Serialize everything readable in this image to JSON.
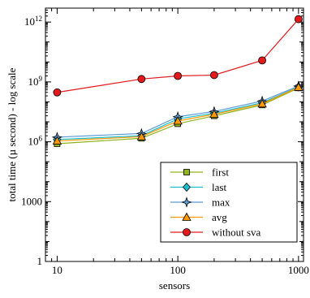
{
  "chart_data": {
    "type": "line",
    "title": "",
    "xlabel": "sensors",
    "ylabel": "total time (µ second) - log scale",
    "xscale": "log",
    "yscale": "log",
    "xlim": [
      8,
      1100
    ],
    "ylim": [
      1,
      5000000000000.0
    ],
    "xticks": [
      {
        "value": 10,
        "label": "10"
      },
      {
        "value": 100,
        "label": "100"
      },
      {
        "value": 1000,
        "label": "1000"
      }
    ],
    "yticks": [
      {
        "value": 1,
        "label": "1",
        "exp": ""
      },
      {
        "value": 1000,
        "label": "1000",
        "exp": ""
      },
      {
        "value": 1000000,
        "label": "10",
        "exp": "6"
      },
      {
        "value": 1000000000,
        "label": "10",
        "exp": "9"
      },
      {
        "value": 1000000000000,
        "label": "10",
        "exp": "12"
      }
    ],
    "grid": false,
    "legend_position": "bottom-right",
    "x": [
      10,
      50,
      100,
      200,
      500,
      1000
    ],
    "series": [
      {
        "name": "first",
        "color": "#8fb31a",
        "marker": "square",
        "values": [
          800000,
          1500000,
          8000000,
          20000000,
          70000000,
          500000000
        ]
      },
      {
        "name": "last",
        "color": "#17becf",
        "marker": "diamond",
        "values": [
          1300000,
          2000000,
          14000000,
          27000000,
          90000000,
          560000000
        ]
      },
      {
        "name": "max",
        "color": "#5b9bd5",
        "marker": "star",
        "values": [
          1700000,
          2600000,
          18000000,
          33000000,
          110000000,
          620000000
        ]
      },
      {
        "name": "avg",
        "color": "#ff9900",
        "marker": "triangle",
        "values": [
          1100000,
          1800000,
          11000000,
          24000000,
          80000000,
          540000000
        ]
      },
      {
        "name": "without sva",
        "color": "#e31a1c",
        "marker": "circle",
        "values": [
          300000000,
          1400000000,
          2000000000,
          2200000000,
          12000000000,
          1400000000000
        ]
      }
    ]
  }
}
